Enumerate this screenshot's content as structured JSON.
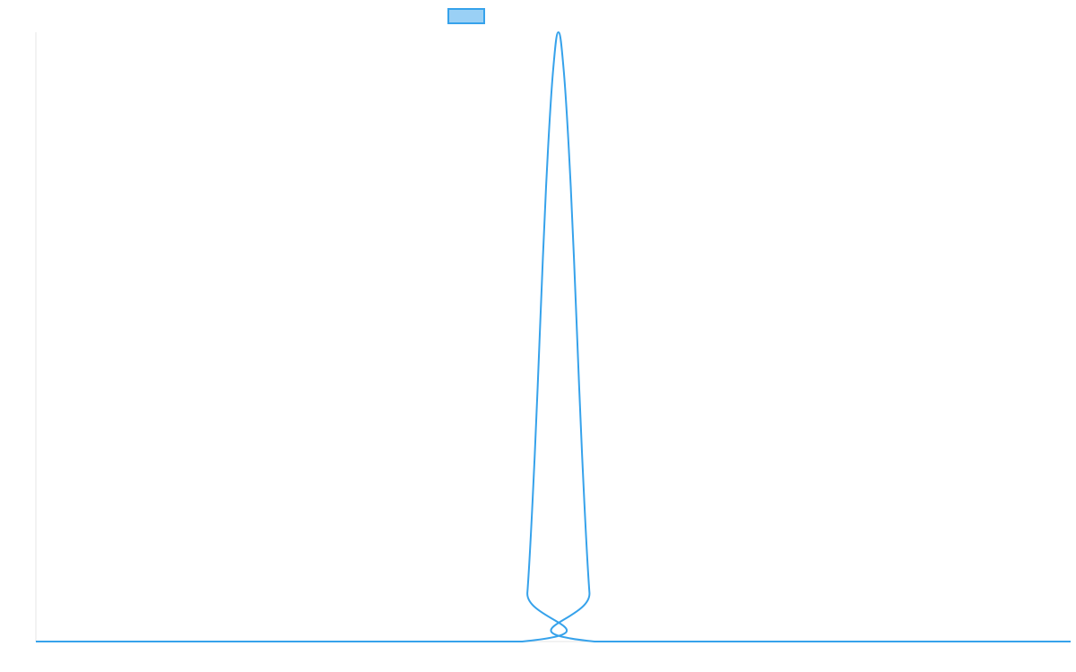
{
  "chart_data": {
    "type": "line",
    "title": "",
    "xlabel": "",
    "ylabel": "",
    "grid": false,
    "legend": {
      "position": "top-center",
      "entries": [
        {
          "label": "",
          "color": "#36a2eb",
          "fill": "#9ad0f5"
        }
      ]
    },
    "xlim": [
      0,
      100
    ],
    "ylim": [
      0,
      1
    ],
    "series": [
      {
        "color": "#36a2eb",
        "x": [
          0,
          47,
          47.5,
          48,
          48.5,
          49,
          49.5,
          50,
          50.5,
          51,
          51.5,
          52,
          52.5,
          53,
          53.5,
          54,
          100
        ],
        "y": [
          0,
          0,
          0.08,
          0.23,
          0.42,
          0.63,
          0.81,
          0.94,
          1.0,
          0.94,
          0.81,
          0.63,
          0.42,
          0.23,
          0.08,
          0,
          0
        ]
      }
    ]
  }
}
